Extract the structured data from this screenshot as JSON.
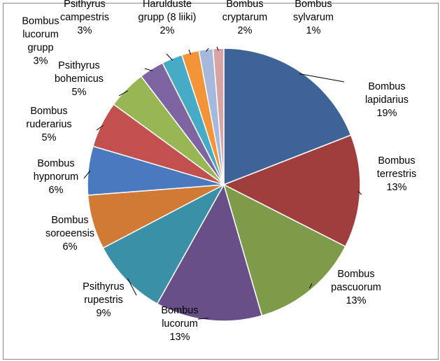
{
  "chart_data": {
    "type": "pie",
    "title": "",
    "slices": [
      {
        "name": "Bombus lapidarius",
        "lines": [
          "Bombus",
          "lapidarius"
        ],
        "pct_label": "19%",
        "value": 19.5,
        "color": "#3e6397"
      },
      {
        "name": "Bombus terrestris",
        "lines": [
          "Bombus",
          "terrestris"
        ],
        "pct_label": "13%",
        "value": 13.7,
        "color": "#a03e3d"
      },
      {
        "name": "Bombus pascuorum",
        "lines": [
          "Bombus",
          "pascuorum"
        ],
        "pct_label": "13%",
        "value": 13.3,
        "color": "#7e9b49"
      },
      {
        "name": "Bombus lucorum",
        "lines": [
          "Bombus",
          "lucorum"
        ],
        "pct_label": "13%",
        "value": 12.9,
        "color": "#684f88"
      },
      {
        "name": "Psithyrus rupestris",
        "lines": [
          "Psithyrus",
          "rupestris"
        ],
        "pct_label": "9%",
        "value": 9.4,
        "color": "#3a91a7"
      },
      {
        "name": "Bombus soroeensis",
        "lines": [
          "Bombus",
          "soroeensis"
        ],
        "pct_label": "6%",
        "value": 6.6,
        "color": "#d17a36"
      },
      {
        "name": "Bombus hypnorum",
        "lines": [
          "Bombus",
          "hypnorum"
        ],
        "pct_label": "6%",
        "value": 5.9,
        "color": "#4a79c0"
      },
      {
        "name": "Bombus ruderarius",
        "lines": [
          "Bombus",
          "ruderarius"
        ],
        "pct_label": "5%",
        "value": 5.6,
        "color": "#c2504e"
      },
      {
        "name": "Psithyrus bohemicus",
        "lines": [
          "Psithyrus",
          "bohemicus"
        ],
        "pct_label": "5%",
        "value": 4.7,
        "color": "#98b754"
      },
      {
        "name": "Bombus lucorum grupp",
        "lines": [
          "Bombus",
          "lucorum",
          "grupp"
        ],
        "pct_label": "3%",
        "value": 3.0,
        "color": "#7e64a1"
      },
      {
        "name": "Psithyrus campestris",
        "lines": [
          "Psithyrus",
          "campestris"
        ],
        "pct_label": "3%",
        "value": 2.5,
        "color": "#45abc6"
      },
      {
        "name": "Harulduste grupp (8 liiki)",
        "lines": [
          "Harulduste",
          "grupp (8 liiki)"
        ],
        "pct_label": "2%",
        "value": 2.1,
        "color": "#f39439"
      },
      {
        "name": "Bombus cryptarum",
        "lines": [
          "Bombus",
          "cryptarum"
        ],
        "pct_label": "2%",
        "value": 1.7,
        "color": "#a6b9dc"
      },
      {
        "name": "Bombus sylvarum",
        "lines": [
          "Bombus",
          "sylvarum"
        ],
        "pct_label": "1%",
        "value": 1.3,
        "color": "#d8a5a4"
      }
    ]
  }
}
